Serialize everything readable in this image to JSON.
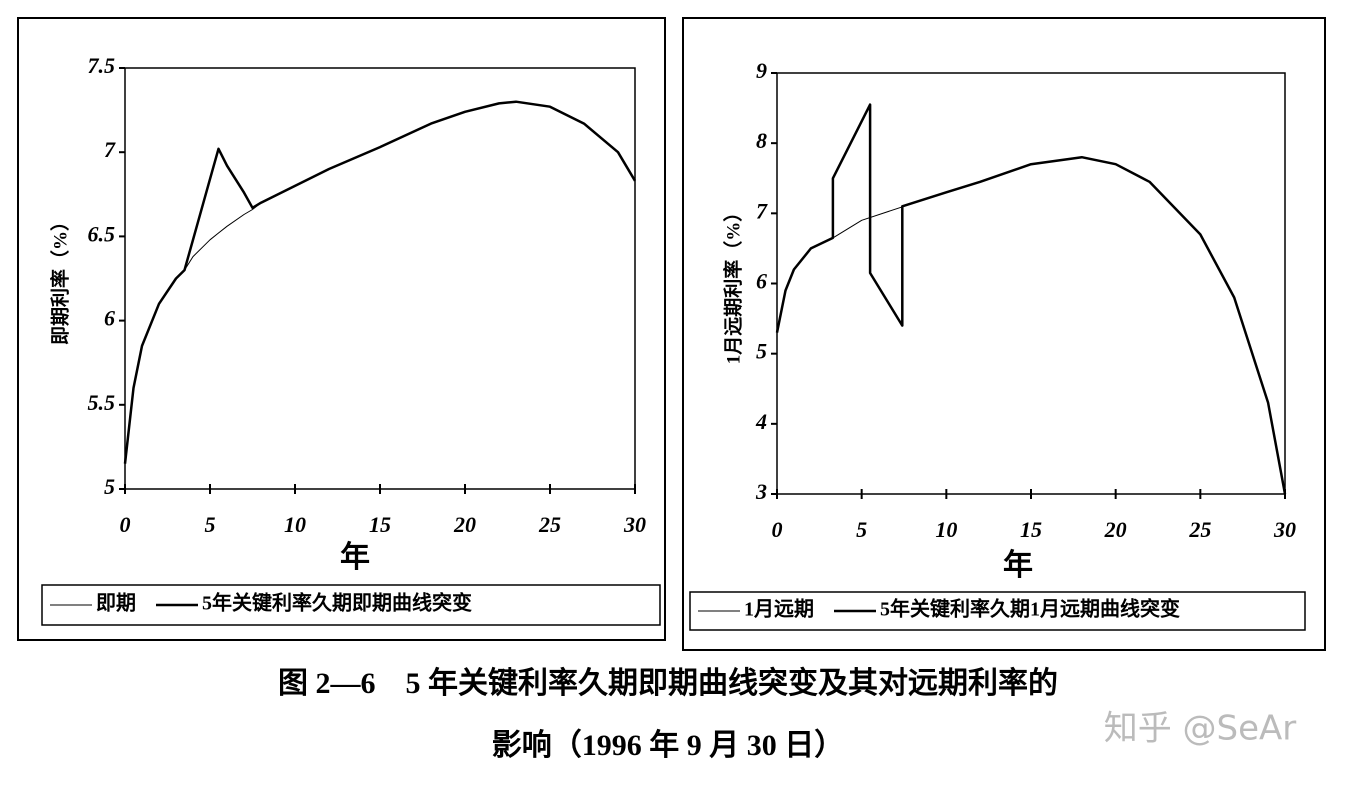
{
  "chart_data": [
    {
      "type": "line",
      "x_label": "年",
      "y_label": "即期利率（%）",
      "xlim": [
        0,
        30
      ],
      "xticks": [
        0,
        5,
        10,
        15,
        20,
        25,
        30
      ],
      "ylim": [
        5,
        7.5
      ],
      "yticks": [
        5,
        5.5,
        6,
        6.5,
        7,
        7.5
      ],
      "x": [
        0,
        0.5,
        1,
        2,
        3,
        3.5,
        4,
        5,
        5.5,
        6,
        7,
        7.5,
        8,
        10,
        12,
        15,
        18,
        20,
        22,
        23,
        25,
        27,
        29,
        30
      ],
      "series": [
        {
          "name": "即期",
          "color": "#000000",
          "line_width": 1,
          "values": [
            5.15,
            5.6,
            5.85,
            6.1,
            6.25,
            6.3,
            6.38,
            6.48,
            6.52,
            6.56,
            6.63,
            6.66,
            6.7,
            6.8,
            6.9,
            7.03,
            7.17,
            7.24,
            7.29,
            7.3,
            7.27,
            7.17,
            7.0,
            6.83
          ]
        },
        {
          "name": "5年关键利率久期即期曲线突变",
          "color": "#000000",
          "line_width": 2.5,
          "values": [
            5.15,
            5.6,
            5.85,
            6.1,
            6.25,
            6.3,
            6.48,
            6.84,
            7.02,
            6.92,
            6.76,
            6.67,
            6.7,
            6.8,
            6.9,
            7.03,
            7.17,
            7.24,
            7.29,
            7.3,
            7.27,
            7.17,
            7.0,
            6.83
          ]
        }
      ]
    },
    {
      "type": "line",
      "x_label": "年",
      "y_label": "1月远期利率（%）",
      "xlim": [
        0,
        30
      ],
      "xticks": [
        0,
        5,
        10,
        15,
        20,
        25,
        30
      ],
      "ylim": [
        3,
        9
      ],
      "yticks": [
        3,
        4,
        5,
        6,
        7,
        8,
        9
      ],
      "series": [
        {
          "name": "1月远期",
          "color": "#000000",
          "line_width": 1,
          "x": [
            0,
            0.5,
            1,
            2,
            3.3,
            5,
            7.5,
            10,
            12,
            15,
            18,
            20,
            22,
            25,
            27,
            29,
            30
          ],
          "values": [
            5.3,
            5.9,
            6.2,
            6.5,
            6.65,
            6.9,
            7.1,
            7.3,
            7.45,
            7.7,
            7.8,
            7.7,
            7.45,
            6.7,
            5.8,
            4.3,
            3.0
          ]
        },
        {
          "name": "5年关键利率久期1月远期曲线突变",
          "color": "#000000",
          "line_width": 2.5,
          "x": [
            0,
            0.5,
            1,
            2,
            3.3,
            3.3,
            5.5,
            5.5,
            7.4,
            7.4,
            10,
            12,
            15,
            18,
            20,
            22,
            25,
            27,
            29,
            30
          ],
          "values": [
            5.3,
            5.9,
            6.2,
            6.5,
            6.65,
            7.5,
            8.55,
            6.15,
            5.4,
            7.1,
            7.3,
            7.45,
            7.7,
            7.8,
            7.7,
            7.45,
            6.7,
            5.8,
            4.3,
            3.0
          ]
        }
      ]
    }
  ],
  "caption": [
    "图 2—6　5 年关键利率久期即期曲线突变及其对远期利率的",
    "影响（1996 年 9 月 30 日）"
  ],
  "watermark": "知乎 @SeAr"
}
